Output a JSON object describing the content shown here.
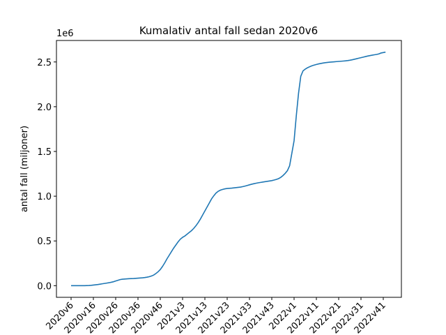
{
  "chart_data": {
    "type": "line",
    "title": "Kumalativ antal fall sedan 2020v6",
    "y_label": "antal fall (miljoner)",
    "y_offset_label": "1e6",
    "categories": [
      "2020v6",
      null,
      null,
      null,
      null,
      null,
      null,
      null,
      null,
      null,
      "2020v16",
      null,
      null,
      null,
      null,
      null,
      null,
      null,
      null,
      null,
      "2020v26",
      null,
      null,
      null,
      null,
      null,
      null,
      null,
      null,
      null,
      "2020v36",
      null,
      null,
      null,
      null,
      null,
      null,
      null,
      null,
      null,
      "2020v46",
      null,
      null,
      null,
      null,
      null,
      null,
      null,
      null,
      null,
      "2021v3",
      null,
      null,
      null,
      null,
      null,
      null,
      null,
      null,
      null,
      "2021v13",
      null,
      null,
      null,
      null,
      null,
      null,
      null,
      null,
      null,
      "2021v23",
      null,
      null,
      null,
      null,
      null,
      null,
      null,
      null,
      null,
      "2021v33",
      null,
      null,
      null,
      null,
      null,
      null,
      null,
      null,
      null,
      "2021v43",
      null,
      null,
      null,
      null,
      null,
      null,
      null,
      null,
      null,
      "2022v1",
      null,
      null,
      null,
      null,
      null,
      null,
      null,
      null,
      null,
      "2022v11",
      null,
      null,
      null,
      null,
      null,
      null,
      null,
      null,
      null,
      "2022v21",
      null,
      null,
      null,
      null,
      null,
      null,
      null,
      null,
      null,
      "2022v31",
      null,
      null,
      null,
      null,
      null,
      null,
      null,
      null,
      null,
      "2022v41",
      null
    ],
    "values": [
      0,
      0,
      0,
      0,
      0,
      0,
      0,
      0.001,
      0.002,
      0.004,
      0.007,
      0.01,
      0.013,
      0.017,
      0.021,
      0.025,
      0.029,
      0.033,
      0.038,
      0.044,
      0.052,
      0.06,
      0.068,
      0.072,
      0.074,
      0.076,
      0.078,
      0.079,
      0.08,
      0.082,
      0.084,
      0.086,
      0.088,
      0.091,
      0.095,
      0.1,
      0.108,
      0.118,
      0.135,
      0.155,
      0.18,
      0.215,
      0.255,
      0.3,
      0.34,
      0.38,
      0.42,
      0.455,
      0.49,
      0.52,
      0.54,
      0.555,
      0.575,
      0.595,
      0.615,
      0.64,
      0.67,
      0.705,
      0.745,
      0.79,
      0.835,
      0.88,
      0.925,
      0.97,
      1.005,
      1.035,
      1.055,
      1.068,
      1.076,
      1.082,
      1.086,
      1.088,
      1.09,
      1.093,
      1.096,
      1.099,
      1.102,
      1.107,
      1.113,
      1.12,
      1.127,
      1.134,
      1.14,
      1.145,
      1.15,
      1.154,
      1.158,
      1.162,
      1.166,
      1.17,
      1.174,
      1.18,
      1.187,
      1.196,
      1.21,
      1.23,
      1.255,
      1.285,
      1.34,
      1.48,
      1.62,
      1.9,
      2.15,
      2.34,
      2.4,
      2.42,
      2.435,
      2.447,
      2.457,
      2.465,
      2.472,
      2.478,
      2.483,
      2.488,
      2.492,
      2.495,
      2.498,
      2.5,
      2.502,
      2.504,
      2.506,
      2.508,
      2.51,
      2.512,
      2.515,
      2.519,
      2.524,
      2.53,
      2.536,
      2.542,
      2.548,
      2.554,
      2.56,
      2.566,
      2.571,
      2.576,
      2.58,
      2.584,
      2.59,
      2.6,
      2.605,
      2.61
    ],
    "color": "#1f77b4",
    "ylim": [
      -0.13,
      2.74
    ],
    "yticks": [
      {
        "value": 0,
        "label": "0.0"
      },
      0.5,
      {
        "value": 1,
        "label": "1.0"
      },
      1.5,
      {
        "value": 2,
        "label": "2.0"
      },
      2.5
    ]
  }
}
